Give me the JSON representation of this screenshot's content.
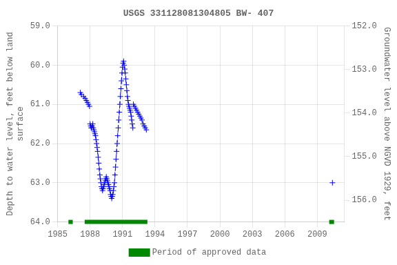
{
  "chart_data": {
    "type": "line",
    "title": "USGS 331128081304805 BW- 407",
    "y_label": "Depth to water level, feet below land\nsurface",
    "y2_label": "Groundwater level above NGVD 1929, feet",
    "xlim": [
      1985,
      2011.5
    ],
    "xticks": [
      1985,
      1988,
      1991,
      1994,
      1997,
      2000,
      2003,
      2006,
      2009
    ],
    "ylim": [
      64.0,
      59.0
    ],
    "yticks": [
      {
        "value": 59.0,
        "label": "59.0"
      },
      {
        "value": 60.0,
        "label": "60.0"
      },
      {
        "value": 61.0,
        "label": "61.0"
      },
      {
        "value": 62.0,
        "label": "62.0"
      },
      {
        "value": 63.0,
        "label": "63.0"
      },
      {
        "value": 64.0,
        "label": "64.0"
      }
    ],
    "y2lim": [
      156.5,
      152.0
    ],
    "y2ticks": [
      {
        "value": 156.0,
        "label": "156.0"
      },
      {
        "value": 155.0,
        "label": "155.0"
      },
      {
        "value": 154.0,
        "label": "154.0"
      },
      {
        "value": 153.0,
        "label": "153.0"
      },
      {
        "value": 152.0,
        "label": "152.0"
      }
    ],
    "grid": true,
    "legend": "bottom",
    "series": [
      {
        "color": "#0000ff",
        "marker": "plus",
        "line_style": "dashed",
        "x": [
          1987.1,
          1987.2,
          1987.4,
          1987.55,
          1987.65,
          1987.75,
          1987.85,
          1987.95
        ],
        "values": [
          60.7,
          60.75,
          60.8,
          60.85,
          60.9,
          60.95,
          61.0,
          61.05
        ]
      },
      {
        "color": "#0000ff",
        "marker": "plus",
        "line_style": "dashed",
        "x": [
          1988.0,
          1988.05,
          1988.1,
          1988.15,
          1988.2,
          1988.25,
          1988.3,
          1988.35,
          1988.4,
          1988.45,
          1988.5,
          1988.55,
          1988.6,
          1988.65,
          1988.7,
          1988.75,
          1988.8,
          1988.85,
          1988.9,
          1988.95,
          1989.0,
          1989.05,
          1989.1,
          1989.15,
          1989.2,
          1989.25,
          1989.3,
          1989.35,
          1989.4,
          1989.45,
          1989.5,
          1989.55,
          1989.6,
          1989.65,
          1989.7,
          1989.75,
          1989.8,
          1989.85,
          1989.9,
          1989.95,
          1990.0,
          1990.05,
          1990.1,
          1990.15,
          1990.2,
          1990.25,
          1990.3,
          1990.35,
          1990.4,
          1990.45,
          1990.5,
          1990.55,
          1990.6,
          1990.65,
          1990.7,
          1990.75,
          1990.8,
          1990.85,
          1990.9,
          1990.95,
          1991.0,
          1991.05,
          1991.1,
          1991.15,
          1991.2,
          1991.25,
          1991.3,
          1991.35,
          1991.4,
          1991.45,
          1991.5,
          1991.55,
          1991.6,
          1991.65,
          1991.7,
          1991.75,
          1991.8,
          1991.85,
          1991.9,
          1991.95
        ],
        "values": [
          61.5,
          61.55,
          61.6,
          61.6,
          61.55,
          61.5,
          61.6,
          61.65,
          61.7,
          61.75,
          61.8,
          61.9,
          62.0,
          62.1,
          62.2,
          62.35,
          62.5,
          62.65,
          62.8,
          62.9,
          63.0,
          63.1,
          63.15,
          63.2,
          63.15,
          63.1,
          63.05,
          63.0,
          62.95,
          62.9,
          62.85,
          62.9,
          62.95,
          63.0,
          63.05,
          63.1,
          63.15,
          63.2,
          63.3,
          63.35,
          63.4,
          63.35,
          63.3,
          63.2,
          63.1,
          63.0,
          62.8,
          62.6,
          62.4,
          62.2,
          62.0,
          61.8,
          61.6,
          61.4,
          61.2,
          61.0,
          60.8,
          60.6,
          60.4,
          60.2,
          60.05,
          59.95,
          59.9,
          60.0,
          60.1,
          60.2,
          60.35,
          60.5,
          60.65,
          60.8,
          60.9,
          61.0,
          61.05,
          61.1,
          61.15,
          61.2,
          61.3,
          61.4,
          61.5,
          61.6
        ]
      },
      {
        "color": "#0000ff",
        "marker": "plus",
        "line_style": "dashed",
        "x": [
          1992.0,
          1992.1,
          1992.2,
          1992.3,
          1992.4,
          1992.5,
          1992.6,
          1992.7,
          1992.8,
          1992.9,
          1993.0,
          1993.1,
          1993.2
        ],
        "values": [
          61.0,
          61.05,
          61.1,
          61.15,
          61.2,
          61.25,
          61.3,
          61.35,
          61.4,
          61.5,
          61.55,
          61.6,
          61.65
        ]
      },
      {
        "color": "#0000ff",
        "marker": "plus",
        "line_style": "dashed",
        "x": [
          2010.4
        ],
        "values": [
          63.0
        ]
      },
      {
        "name": "Period of approved data",
        "type": "bar",
        "orientation": "horizontal",
        "color": "#008800",
        "ranges": [
          [
            1986.0,
            1986.4
          ],
          [
            1987.5,
            1993.3
          ],
          [
            2010.1,
            2010.55
          ]
        ]
      }
    ]
  }
}
